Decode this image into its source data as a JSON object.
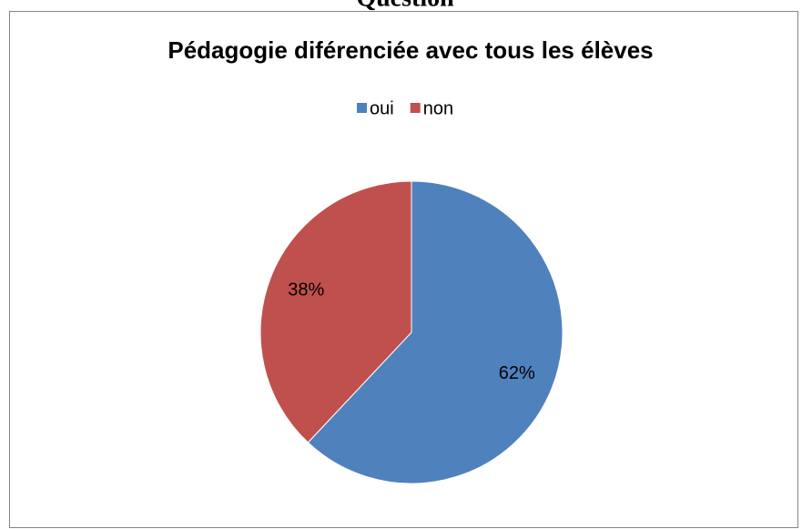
{
  "heading": "Question",
  "chart_data": {
    "type": "pie",
    "title": "Pédagogie diférenciée avec tous les élèves",
    "categories": [
      "oui",
      "non"
    ],
    "values": [
      62,
      38
    ],
    "value_labels": [
      "62%",
      "38%"
    ],
    "colors": [
      "#4f81bd",
      "#c0504d"
    ],
    "legend": "top"
  }
}
